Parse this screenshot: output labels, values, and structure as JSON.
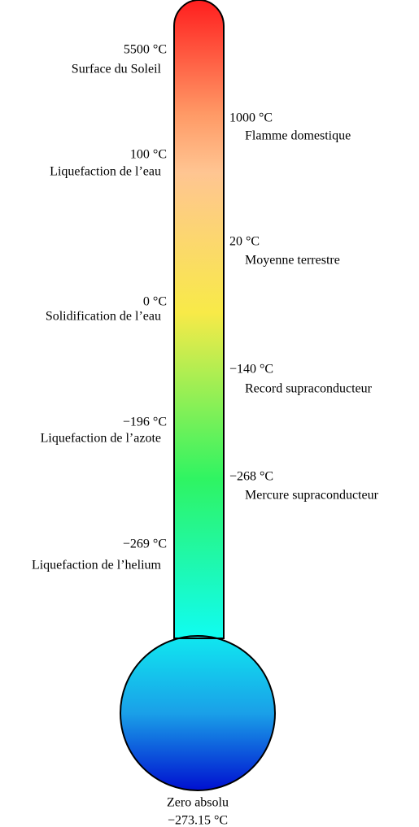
{
  "labels": [
    {
      "temperature": "5500 °C",
      "description": "Surface du Soleil"
    },
    {
      "temperature": "1000 °C",
      "description": "Flamme domestique"
    },
    {
      "temperature": "100 °C",
      "description": "Liquefaction de l’eau"
    },
    {
      "temperature": "20 °C",
      "description": "Moyenne terrestre"
    },
    {
      "temperature": "0 °C",
      "description": "Solidification de l’eau"
    },
    {
      "temperature": "−140 °C",
      "description": "Record supraconducteur"
    },
    {
      "temperature": "−196 °C",
      "description": "Liquefaction de l’azote"
    },
    {
      "temperature": "−268 °C",
      "description": "Mercure supraconducteur"
    },
    {
      "temperature": "−269 °C",
      "description": "Liquefaction de l’helium"
    }
  ],
  "bottom": {
    "description": "Zero absolu",
    "temperature": "−273.15 °C"
  }
}
